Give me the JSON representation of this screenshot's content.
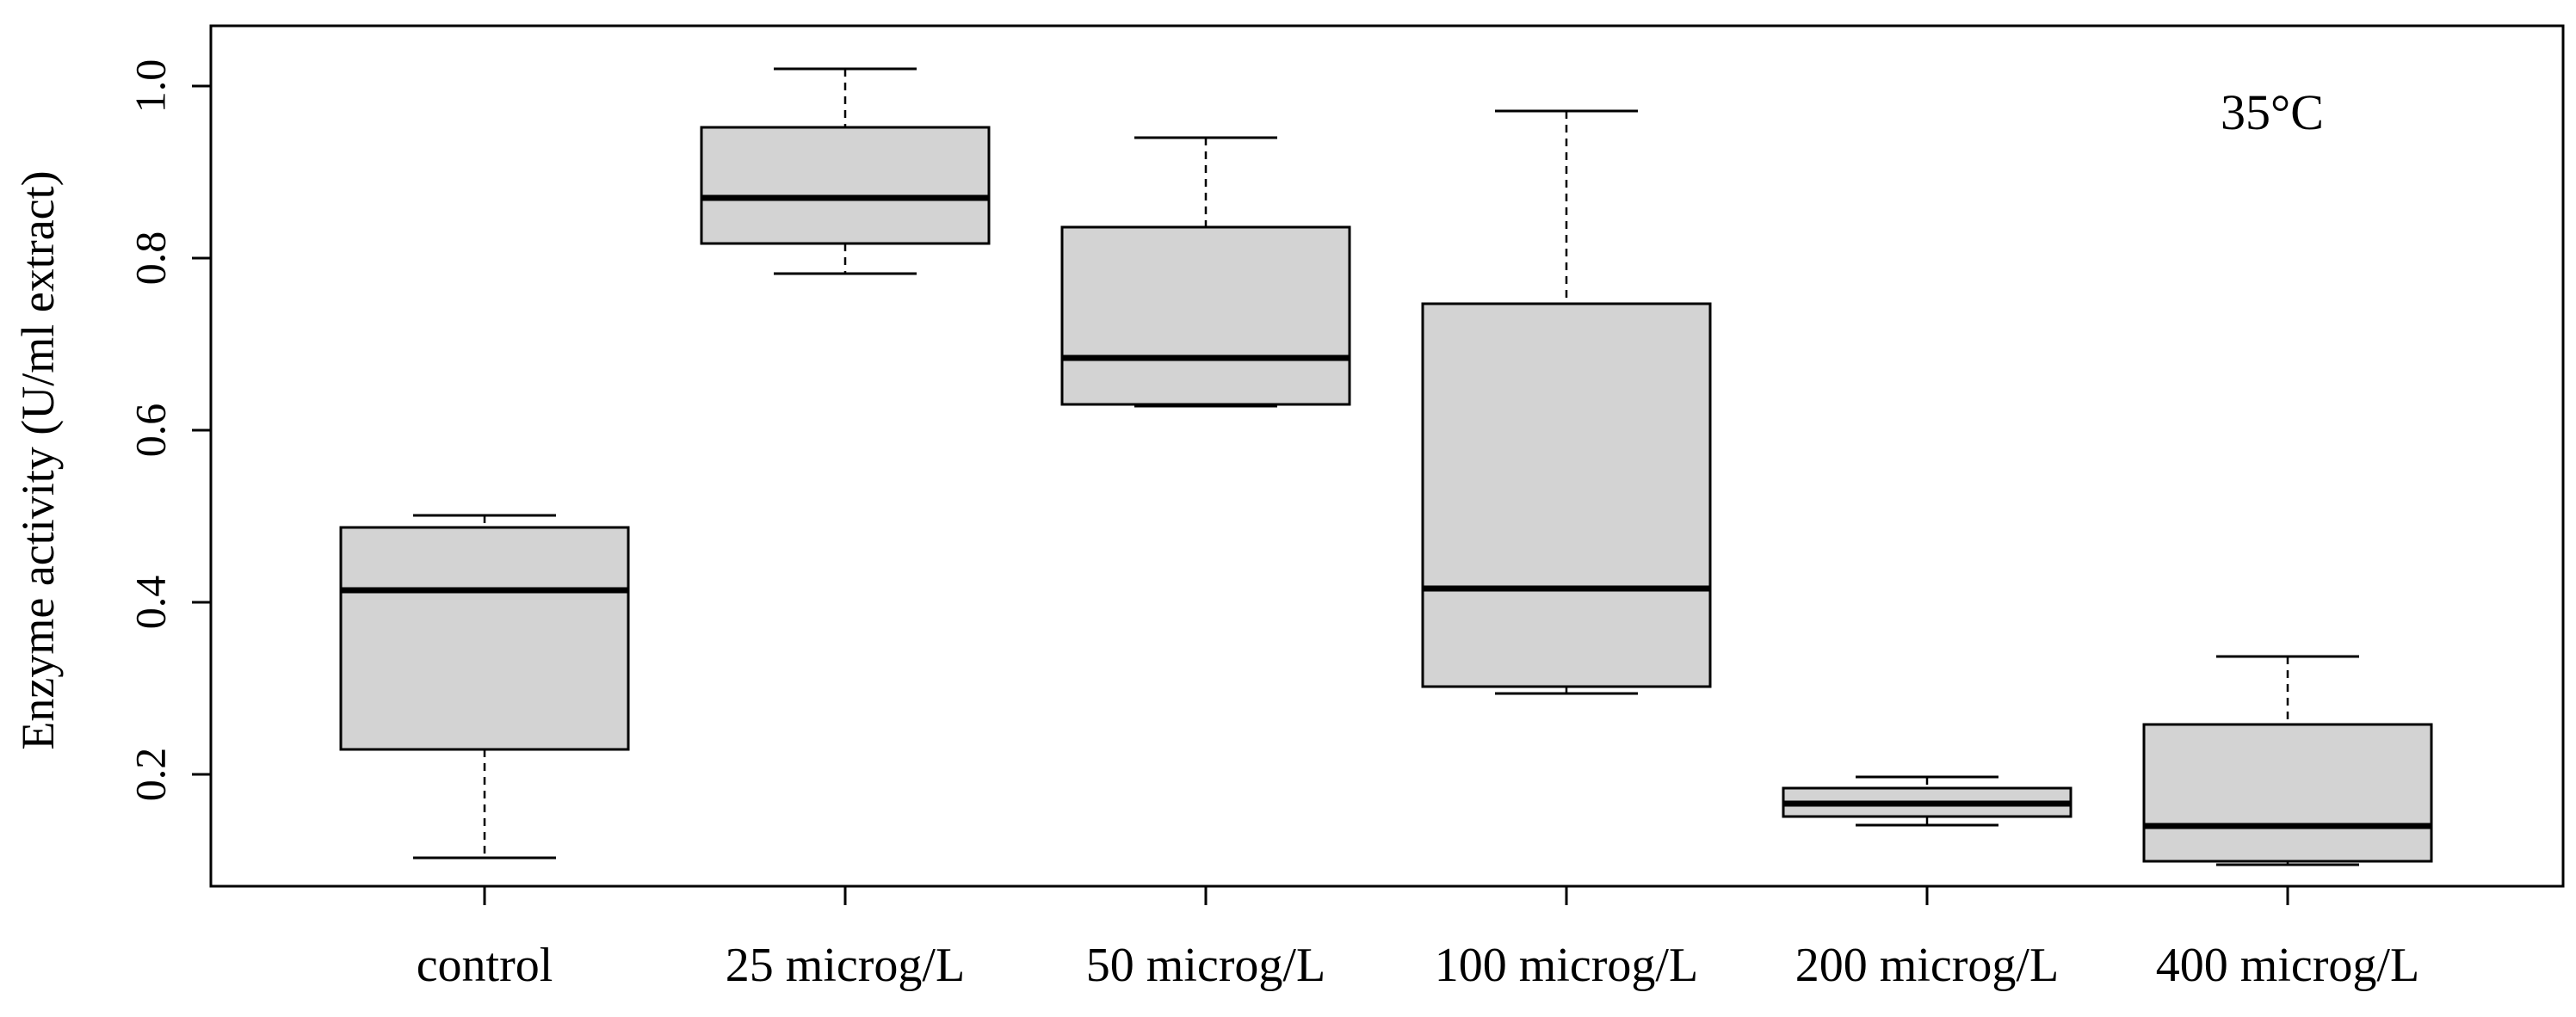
{
  "chart_data": {
    "type": "boxplot",
    "title": "",
    "annotation": "35°C",
    "xlabel": "",
    "ylabel": "Enzyme activity (U/ml extract)",
    "ylim": [
      0.07,
      1.07
    ],
    "yticks": [
      0.2,
      0.4,
      0.6,
      0.8,
      1.0
    ],
    "ytick_labels": [
      "0.2",
      "0.4",
      "0.6",
      "0.8",
      "1.0"
    ],
    "grid": false,
    "box_fill": "#d3d3d3",
    "line_color": "#000000",
    "categories": [
      "control",
      "25 microg/L",
      "50 microg/L",
      "100 microg/L",
      "200 microg/L",
      "400 microg/L"
    ],
    "boxes": [
      {
        "category": "control",
        "min": 0.103,
        "q1": 0.229,
        "median": 0.414,
        "q3": 0.487,
        "max": 0.501
      },
      {
        "category": "25 microg/L",
        "min": 0.782,
        "q1": 0.817,
        "median": 0.87,
        "q3": 0.952,
        "max": 1.02
      },
      {
        "category": "50 microg/L",
        "min": 0.628,
        "q1": 0.63,
        "median": 0.684,
        "q3": 0.836,
        "max": 0.94
      },
      {
        "category": "100 microg/L",
        "min": 0.294,
        "q1": 0.302,
        "median": 0.416,
        "q3": 0.747,
        "max": 0.971
      },
      {
        "category": "200 microg/L",
        "min": 0.141,
        "q1": 0.151,
        "median": 0.166,
        "q3": 0.184,
        "max": 0.197
      },
      {
        "category": "400 microg/L",
        "min": 0.095,
        "q1": 0.099,
        "median": 0.14,
        "q3": 0.258,
        "max": 0.337
      }
    ]
  }
}
